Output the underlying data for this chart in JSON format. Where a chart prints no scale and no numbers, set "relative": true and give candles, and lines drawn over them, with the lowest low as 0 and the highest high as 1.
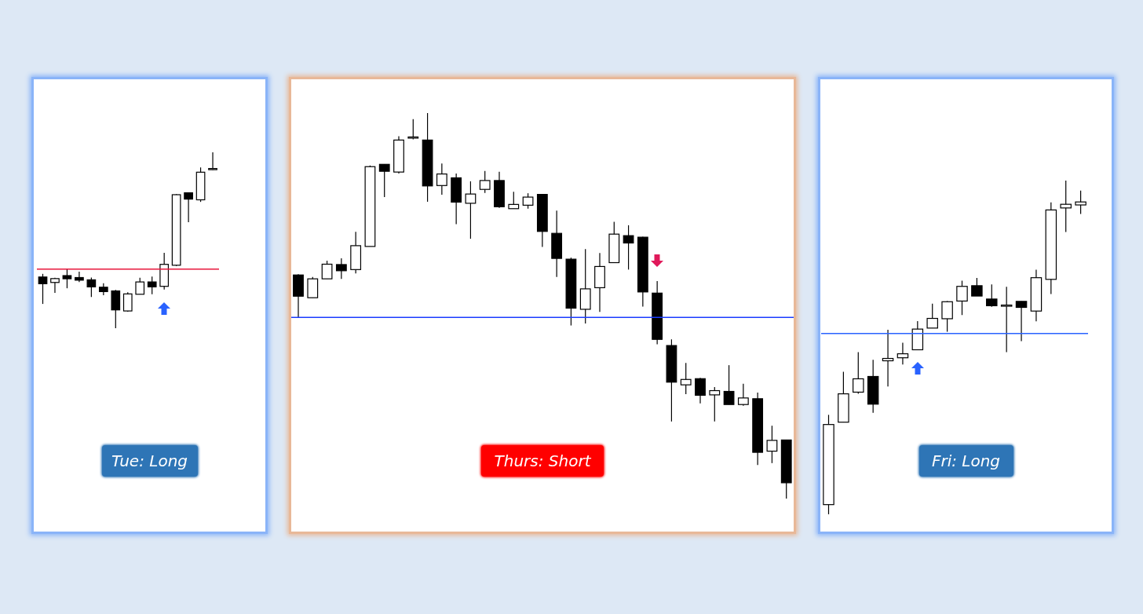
{
  "chart_data": [
    {
      "type": "candlestick",
      "title": "Tue: Long",
      "relative": true,
      "tick_labels": false,
      "categories": [
        null,
        null,
        null,
        null,
        null,
        null,
        null,
        null,
        null,
        null,
        null,
        null,
        null,
        null,
        null
      ],
      "ohlc": [
        [
          0.291,
          0.309,
          0.138,
          0.253
        ],
        [
          0.26,
          0.287,
          0.201,
          0.282
        ],
        [
          0.299,
          0.336,
          0.227,
          0.281
        ],
        [
          0.288,
          0.321,
          0.262,
          0.273
        ],
        [
          0.275,
          0.288,
          0.178,
          0.235
        ],
        [
          0.233,
          0.256,
          0.187,
          0.208
        ],
        [
          0.212,
          0.218,
          0,
          0.104
        ],
        [
          0.098,
          0.204,
          0.094,
          0.195
        ],
        [
          0.193,
          0.287,
          0.193,
          0.263
        ],
        [
          0.263,
          0.294,
          0.193,
          0.235
        ],
        [
          0.238,
          0.429,
          0.22,
          0.363
        ],
        [
          0.358,
          0.762,
          0.354,
          0.759
        ],
        [
          0.77,
          0.77,
          0.603,
          0.734
        ],
        [
          0.73,
          0.914,
          0.718,
          0.887
        ],
        [
          0.902,
          1,
          0.899,
          0.908
        ]
      ],
      "ref_lines": [
        {
          "axis": "y",
          "value": 0.336,
          "color": "#e8173c"
        }
      ]
    },
    {
      "type": "candlestick",
      "title": "Thurs: Short",
      "relative": true,
      "tick_labels": false,
      "categories": [
        null,
        null,
        null,
        null,
        null,
        null,
        null,
        null,
        null,
        null,
        null,
        null,
        null,
        null,
        null,
        null,
        null,
        null,
        null,
        null,
        null,
        null,
        null,
        null,
        null,
        null,
        null,
        null,
        null,
        null,
        null,
        null,
        null,
        null,
        null
      ],
      "ohlc": [
        [
          0.58,
          0.582,
          0.47,
          0.525
        ],
        [
          0.521,
          0.575,
          0.521,
          0.57
        ],
        [
          0.57,
          0.617,
          0.57,
          0.608
        ],
        [
          0.607,
          0.623,
          0.57,
          0.591
        ],
        [
          0.594,
          0.692,
          0.584,
          0.656
        ],
        [
          0.654,
          0.864,
          0.654,
          0.861
        ],
        [
          0.867,
          0.867,
          0.782,
          0.849
        ],
        [
          0.847,
          0.94,
          0.843,
          0.93
        ],
        [
          0.935,
          0.984,
          0.932,
          0.938
        ],
        [
          0.93,
          1,
          0.77,
          0.811
        ],
        [
          0.812,
          0.869,
          0.788,
          0.842
        ],
        [
          0.832,
          0.843,
          0.712,
          0.769
        ],
        [
          0.766,
          0.823,
          0.674,
          0.79
        ],
        [
          0.802,
          0.85,
          0.793,
          0.825
        ],
        [
          0.825,
          0.848,
          0.754,
          0.757
        ],
        [
          0.752,
          0.796,
          0.752,
          0.763
        ],
        [
          0.761,
          0.792,
          0.752,
          0.782
        ],
        [
          0.789,
          0.789,
          0.653,
          0.693
        ],
        [
          0.688,
          0.747,
          0.575,
          0.623
        ],
        [
          0.621,
          0.625,
          0.449,
          0.494
        ],
        [
          0.491,
          0.647,
          0.454,
          0.544
        ],
        [
          0.547,
          0.637,
          0.484,
          0.602
        ],
        [
          0.612,
          0.718,
          0.612,
          0.686
        ],
        [
          0.682,
          0.709,
          0.594,
          0.663
        ],
        [
          0.678,
          0.679,
          0.498,
          0.536
        ],
        [
          0.533,
          0.564,
          0.4,
          0.413
        ],
        [
          0.397,
          0.413,
          0.2,
          0.302
        ],
        [
          0.295,
          0.352,
          0.271,
          0.309
        ],
        [
          0.311,
          0.313,
          0.247,
          0.268
        ],
        [
          0.269,
          0.289,
          0.2,
          0.28
        ],
        [
          0.278,
          0.346,
          0.244,
          0.244
        ],
        [
          0.244,
          0.298,
          0.241,
          0.261
        ],
        [
          0.259,
          0.275,
          0.087,
          0.12
        ],
        [
          0.123,
          0.189,
          0.092,
          0.151
        ],
        [
          0.152,
          0.152,
          0,
          0.041
        ]
      ],
      "ref_lines": [
        {
          "axis": "y",
          "value": 0.47,
          "color": "#1a3cff"
        }
      ]
    },
    {
      "type": "candlestick",
      "title": "Fri: Long",
      "relative": true,
      "tick_labels": false,
      "categories": [
        null,
        null,
        null,
        null,
        null,
        null,
        null,
        null,
        null,
        null,
        null,
        null,
        null,
        null,
        null,
        null,
        null,
        null
      ],
      "ohlc": [
        [
          0.029,
          0.298,
          0,
          0.269
        ],
        [
          0.276,
          0.427,
          0.276,
          0.361
        ],
        [
          0.366,
          0.486,
          0.361,
          0.406
        ],
        [
          0.413,
          0.463,
          0.304,
          0.33
        ],
        [
          0.46,
          0.553,
          0.383,
          0.467
        ],
        [
          0.469,
          0.514,
          0.449,
          0.481
        ],
        [
          0.493,
          0.579,
          0.493,
          0.555
        ],
        [
          0.558,
          0.631,
          0.558,
          0.587
        ],
        [
          0.586,
          0.639,
          0.547,
          0.637
        ],
        [
          0.639,
          0.7,
          0.597,
          0.683
        ],
        [
          0.685,
          0.708,
          0.654,
          0.654
        ],
        [
          0.645,
          0.689,
          0.622,
          0.625
        ],
        [
          0.627,
          0.682,
          0.486,
          0.627
        ],
        [
          0.638,
          0.638,
          0.519,
          0.62
        ],
        [
          0.609,
          0.733,
          0.578,
          0.709
        ],
        [
          0.704,
          0.935,
          0.66,
          0.912
        ],
        [
          0.918,
          1,
          0.846,
          0.929
        ],
        [
          0.927,
          0.97,
          0.9,
          0.936
        ]
      ],
      "ref_lines": [
        {
          "axis": "y",
          "value": 0.542,
          "color": "#2962ff"
        }
      ]
    }
  ]
}
